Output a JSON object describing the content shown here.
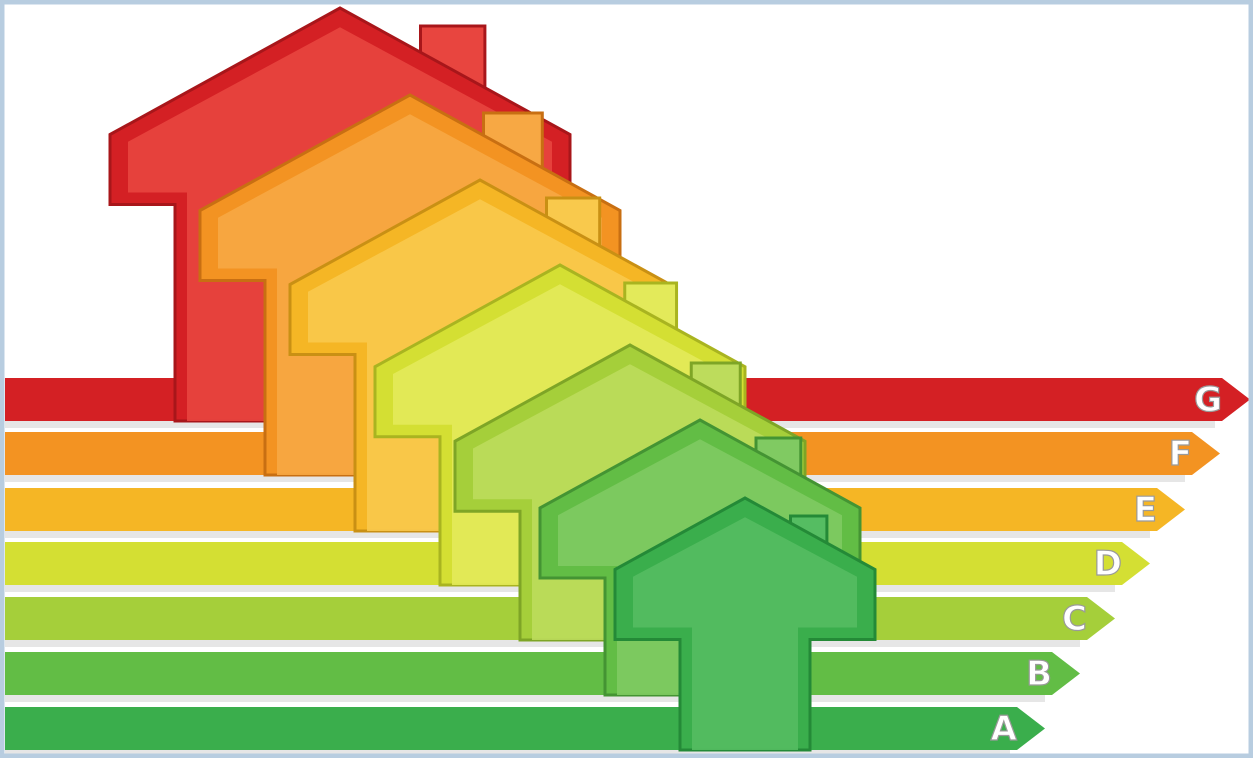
{
  "ratings": {
    "labels": [
      "G",
      "F",
      "E",
      "D",
      "C",
      "B",
      "A"
    ]
  }
}
